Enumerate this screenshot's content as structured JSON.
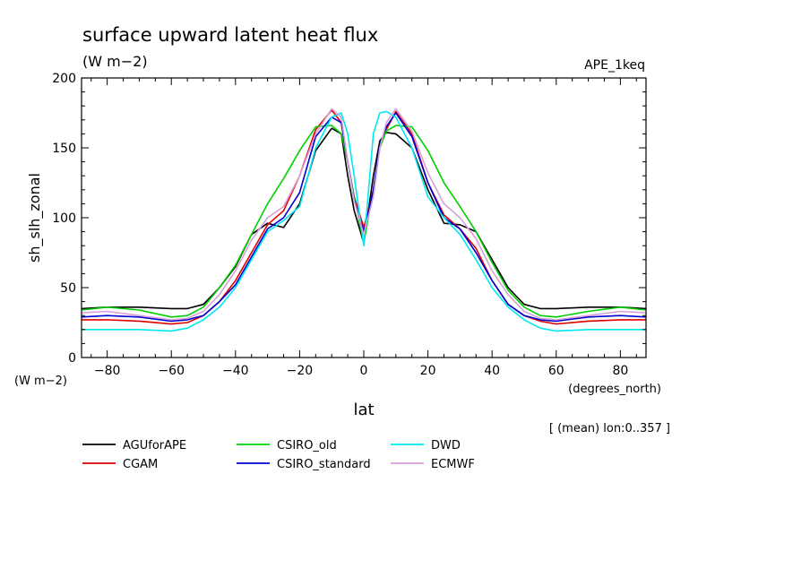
{
  "chart_data": {
    "type": "line",
    "title": "surface upward latent heat flux",
    "units": "(W m−2)",
    "experiment": "APE_1keq",
    "ylabel": "sh_slh_zonal",
    "yunits": "(W m−2)",
    "xlabel": "lat",
    "xunits": "(degrees_north)",
    "note": "[ (mean) lon:0..357 ]",
    "xlim": [
      -88,
      88
    ],
    "ylim": [
      0,
      200
    ],
    "xticks": [
      -80,
      -60,
      -40,
      -20,
      0,
      20,
      40,
      60,
      80
    ],
    "yticks": [
      0,
      50,
      100,
      150,
      200
    ],
    "grid": false,
    "legend_position": "bottom",
    "x": [
      -88,
      -80,
      -70,
      -60,
      -55,
      -50,
      -45,
      -40,
      -35,
      -30,
      -25,
      -20,
      -15,
      -10,
      -7,
      -5,
      -3,
      0,
      3,
      5,
      7,
      10,
      15,
      20,
      25,
      30,
      35,
      40,
      45,
      50,
      55,
      60,
      70,
      80,
      88
    ],
    "series": [
      {
        "name": "AGUforAPE",
        "color": "#000000",
        "values": [
          35,
          36,
          36,
          35,
          35,
          38,
          50,
          65,
          88,
          96,
          93,
          110,
          148,
          164,
          160,
          130,
          105,
          82,
          130,
          155,
          161,
          160,
          150,
          120,
          96,
          95,
          90,
          70,
          50,
          38,
          35,
          35,
          36,
          36,
          35
        ]
      },
      {
        "name": "CGAM",
        "color": "#e00000",
        "values": [
          27,
          27,
          26,
          24,
          25,
          30,
          40,
          55,
          75,
          95,
          105,
          130,
          163,
          177,
          168,
          140,
          115,
          93,
          120,
          150,
          163,
          176,
          160,
          125,
          102,
          92,
          78,
          55,
          38,
          30,
          26,
          24,
          26,
          27,
          27
        ]
      },
      {
        "name": "CSIRO_old",
        "color": "#00d000",
        "values": [
          34,
          36,
          34,
          29,
          30,
          36,
          50,
          66,
          88,
          110,
          128,
          148,
          165,
          166,
          160,
          140,
          115,
          82,
          120,
          150,
          162,
          166,
          165,
          148,
          125,
          108,
          90,
          68,
          48,
          36,
          30,
          29,
          33,
          36,
          34
        ]
      },
      {
        "name": "CSIRO_standard",
        "color": "#0000d0",
        "values": [
          29,
          30,
          29,
          26,
          27,
          30,
          40,
          52,
          72,
          92,
          100,
          118,
          158,
          172,
          168,
          140,
          113,
          90,
          120,
          152,
          165,
          175,
          158,
          125,
          100,
          92,
          75,
          55,
          38,
          30,
          27,
          26,
          29,
          30,
          29
        ]
      },
      {
        "name": "DWD",
        "color": "#00e8f0",
        "values": [
          20,
          20,
          20,
          19,
          21,
          27,
          36,
          50,
          70,
          90,
          98,
          108,
          150,
          172,
          175,
          160,
          130,
          80,
          160,
          175,
          176,
          172,
          150,
          115,
          100,
          88,
          70,
          50,
          36,
          27,
          21,
          19,
          20,
          20,
          20
        ]
      },
      {
        "name": "ECMWF",
        "color": "#d8a0d8",
        "values": [
          32,
          33,
          30,
          27,
          28,
          33,
          45,
          62,
          84,
          100,
          108,
          130,
          160,
          178,
          172,
          140,
          112,
          88,
          115,
          150,
          168,
          178,
          162,
          132,
          110,
          100,
          85,
          62,
          45,
          33,
          28,
          27,
          30,
          33,
          32
        ]
      }
    ]
  }
}
